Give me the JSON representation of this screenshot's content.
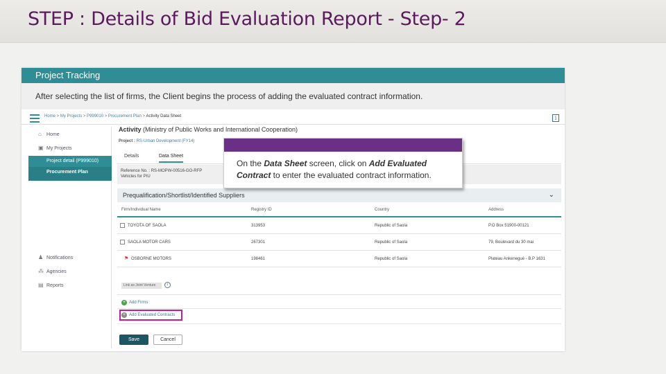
{
  "slide": {
    "title": "STEP : Details of Bid Evaluation Report - Step- 2"
  },
  "panel": {
    "header": "Project Tracking",
    "intro": "After selecting the list of firms, the Client begins the process of adding the evaluated contract information."
  },
  "breadcrumb": {
    "items": [
      "Home",
      "My Projects",
      "P999010",
      "Procurement Plan"
    ],
    "current": "Activity Data Sheet",
    "separator": " > "
  },
  "sidebar": {
    "items": [
      {
        "label": "Home",
        "icon": "home-icon"
      },
      {
        "label": "My Projects",
        "icon": "folder-icon"
      },
      {
        "label": "Project detail (P999010)",
        "icon": ""
      },
      {
        "label": "Procurement Plan",
        "icon": ""
      },
      {
        "label": "Notifications",
        "icon": "bell-icon"
      },
      {
        "label": "Agencies",
        "icon": "agencies-icon"
      },
      {
        "label": "Reports",
        "icon": "report-icon"
      }
    ]
  },
  "activity": {
    "title_prefix": "Activity",
    "title_rest": " (Ministry of Public Works and International Cooperation)",
    "project_label": "Project : ",
    "project_value": "RS-Urban Development (FY14)",
    "tabs": [
      "Details",
      "Data Sheet"
    ],
    "active_tab": "Data Sheet",
    "reference_line1": "Reference No. : RS-MOPW-00516-GO-RFP",
    "reference_line2": "Vehicles for PIU"
  },
  "callout": {
    "parts": [
      "On the ",
      "Data Sheet",
      " screen, click on ",
      "Add Evaluated Contract",
      " to enter the evaluated contract information."
    ],
    "accent_color": "#6a2f86"
  },
  "suppliers": {
    "section_title": "Prequalification/Shortlist/Identified Suppliers",
    "columns": [
      "Firm/Individual Name",
      "Registry ID",
      "Country",
      "Address"
    ],
    "rows": [
      {
        "name": "TOYOTA OF SAOLA",
        "id": "313953",
        "country": "Republic of Saola",
        "address": "P.O Box 51900-00121"
      },
      {
        "name": "SAOLA MOTOR CARS",
        "id": "267301",
        "country": "Republic of Saola",
        "address": "79, Boulevard du 30 mai"
      },
      {
        "name": "OSBORNE MOTORS",
        "id": "198461",
        "country": "Republic of Saola",
        "address": "Plateau Ankenegué - B.P 1631"
      }
    ],
    "joint_venture_label": "Link as Joint Venture",
    "add_firms_label": "Add Firms",
    "add_evaluated_label": "Add Evaluated Contracts",
    "highlight_color": "#c21e8f"
  },
  "actions": {
    "save": "Save",
    "cancel": "Cancel"
  },
  "colors": {
    "teal": "#2f8e95",
    "title_purple": "#5a1a5c",
    "save_dark": "#1f5462"
  }
}
